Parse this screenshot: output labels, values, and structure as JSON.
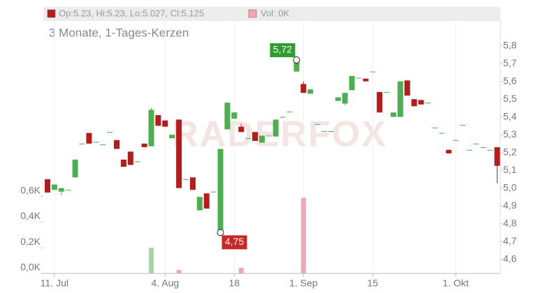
{
  "chart_data": {
    "type": "candlestick",
    "header_ohlc": "Op:5.23, Hi:5.23, Lo:5.027, Cl:5.125",
    "header_volume": "Vol: 0K",
    "subtitle": "3 Monate, 1-Tages-Kerzen",
    "watermark": "RADERFOX",
    "up_color": "#4caf50",
    "down_color": "#b71c1c",
    "categories": [
      null,
      "11. Jul",
      null,
      null,
      null,
      null,
      null,
      null,
      null,
      null,
      null,
      null,
      null,
      null,
      null,
      null,
      null,
      "4. Aug",
      null,
      null,
      null,
      null,
      null,
      null,
      null,
      null,
      null,
      "18",
      null,
      null,
      null,
      null,
      null,
      null,
      null,
      null,
      null,
      "1. Sep",
      null,
      null,
      null,
      null,
      null,
      null,
      null,
      null,
      null,
      "15",
      null,
      null,
      null,
      null,
      null,
      null,
      null,
      null,
      null,
      null,
      null,
      "1. Okt",
      null,
      null,
      null,
      null,
      null,
      null
    ],
    "open": [
      5.05,
      4.99,
      4.98,
      4.99,
      5.06,
      5.25,
      5.31,
      5.26,
      5.245,
      5.315,
      5.27,
      5.16,
      5.205,
      5.15,
      5.25,
      5.235,
      5.41,
      5.38,
      5.28,
      5.385,
      5.05,
      5.06,
      4.875,
      4.97,
      4.98,
      4.75,
      5.33,
      5.39,
      5.345,
      5.28,
      5.315,
      5.255,
      5.295,
      5.29,
      5.4,
      5.43,
      5.655,
      5.585,
      5.53,
      5.36,
      5.32,
      5.32,
      5.49,
      5.475,
      5.55,
      5.62,
      5.615,
      5.655,
      5.54,
      5.54,
      5.4,
      5.4,
      5.605,
      5.5,
      5.495,
      5.48,
      5.34,
      5.31,
      5.215,
      5.27,
      5.355,
      5.215,
      5.25,
      5.23,
      5.215,
      5.23
    ],
    "high": [
      5.05,
      5.02,
      5.0,
      4.99,
      5.16,
      5.25,
      5.31,
      5.26,
      5.245,
      5.315,
      5.27,
      5.16,
      5.205,
      5.15,
      5.25,
      5.45,
      5.41,
      5.38,
      5.3,
      5.385,
      5.05,
      5.06,
      4.95,
      4.97,
      4.98,
      5.22,
      5.48,
      5.425,
      5.36,
      5.28,
      5.315,
      5.295,
      5.295,
      5.385,
      5.4,
      5.43,
      5.72,
      5.6,
      5.555,
      5.36,
      5.32,
      5.32,
      5.51,
      5.535,
      5.63,
      5.62,
      5.615,
      5.655,
      5.54,
      5.54,
      5.425,
      5.6,
      5.605,
      5.5,
      5.495,
      5.48,
      5.34,
      5.31,
      5.215,
      5.27,
      5.355,
      5.215,
      5.25,
      5.23,
      5.215,
      5.23
    ],
    "low": [
      4.975,
      4.99,
      4.96,
      4.99,
      5.06,
      5.25,
      5.25,
      5.26,
      5.245,
      5.315,
      5.22,
      5.12,
      5.13,
      5.15,
      5.23,
      5.235,
      5.35,
      5.345,
      5.28,
      5.0,
      5.05,
      4.99,
      4.875,
      4.885,
      4.98,
      4.75,
      5.33,
      5.39,
      5.315,
      5.28,
      5.265,
      5.255,
      5.295,
      5.29,
      5.4,
      5.43,
      5.655,
      5.535,
      5.53,
      5.36,
      5.32,
      5.32,
      5.49,
      5.465,
      5.55,
      5.62,
      5.6,
      5.655,
      5.425,
      5.54,
      5.4,
      5.4,
      5.52,
      5.46,
      5.47,
      5.48,
      5.34,
      5.31,
      5.195,
      5.27,
      5.355,
      5.215,
      5.25,
      5.23,
      5.215,
      5.027
    ],
    "close": [
      4.975,
      5.02,
      5.0,
      4.99,
      5.16,
      5.25,
      5.25,
      5.26,
      5.245,
      5.315,
      5.22,
      5.12,
      5.13,
      5.15,
      5.23,
      5.44,
      5.35,
      5.345,
      5.3,
      5.0,
      5.05,
      4.99,
      4.95,
      4.885,
      4.98,
      5.22,
      5.48,
      5.425,
      5.315,
      5.28,
      5.265,
      5.295,
      5.295,
      5.385,
      5.4,
      5.43,
      5.715,
      5.535,
      5.555,
      5.36,
      5.32,
      5.32,
      5.51,
      5.535,
      5.63,
      5.62,
      5.6,
      5.655,
      5.425,
      5.54,
      5.425,
      5.6,
      5.52,
      5.46,
      5.47,
      5.48,
      5.34,
      5.31,
      5.195,
      5.27,
      5.355,
      5.215,
      5.25,
      5.23,
      5.215,
      5.125
    ],
    "ylim": [
      4.52,
      5.92
    ],
    "yticks": [
      {
        "value": 4.6,
        "label": "4,6"
      },
      {
        "value": 4.7,
        "label": "4,7"
      },
      {
        "value": 4.8,
        "label": "4,8"
      },
      {
        "value": 4.9,
        "label": "4,9"
      },
      {
        "value": 5.0,
        "label": "5,0"
      },
      {
        "value": 5.1,
        "label": "5,1"
      },
      {
        "value": 5.2,
        "label": "5,2"
      },
      {
        "value": 5.3,
        "label": "5,3"
      },
      {
        "value": 5.4,
        "label": "5,4"
      },
      {
        "value": 5.5,
        "label": "5,5"
      },
      {
        "value": 5.6,
        "label": "5,6"
      },
      {
        "value": 5.7,
        "label": "5,7"
      },
      {
        "value": 5.8,
        "label": "5,8"
      }
    ],
    "volume": {
      "values": [
        0,
        0,
        0,
        0,
        0,
        0,
        0,
        0,
        0,
        0,
        0,
        0,
        0,
        0,
        0,
        200,
        0,
        0,
        0,
        27,
        0,
        0,
        0,
        0,
        0,
        0,
        0,
        0,
        45,
        0,
        0,
        0,
        0,
        0,
        0,
        0,
        0,
        590,
        0,
        0,
        0,
        0,
        0,
        0,
        0,
        0,
        0,
        0,
        0,
        0,
        0,
        0,
        0,
        0,
        0,
        0,
        0,
        0,
        0,
        0,
        0,
        0,
        0,
        0,
        0,
        0
      ],
      "up_color": "#a5d6a7",
      "down_color": "#f0a8b2",
      "ylim": [
        0,
        1940
      ],
      "yticks": [
        {
          "value": 0,
          "label": "0,0K"
        },
        {
          "value": 200,
          "label": "0,2K"
        },
        {
          "value": 400,
          "label": "0,4K"
        },
        {
          "value": 600,
          "label": "0,6K"
        }
      ]
    },
    "annotations": [
      {
        "index": 36,
        "value": 5.72,
        "label": "5,72",
        "color": "#2e9e2e"
      },
      {
        "index": 25,
        "value": 4.75,
        "label": "4,75",
        "color": "#c62828"
      }
    ]
  }
}
